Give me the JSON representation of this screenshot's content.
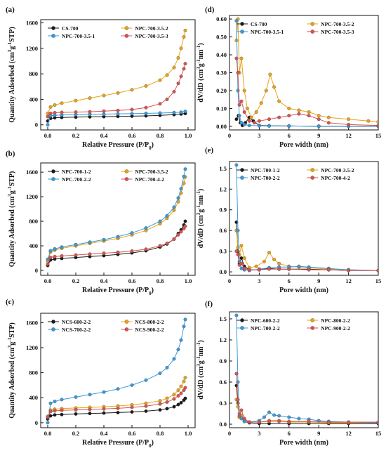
{
  "chart_data": [
    {
      "panel": "(a)",
      "type": "line",
      "xlabel": "Relative Pressure (P/P0)",
      "ylabel": "Quantity Adsorbed (cm3g-1STP)",
      "xlim": [
        -0.05,
        1.05
      ],
      "ylim": [
        -80,
        1650
      ],
      "xticks": [
        0.0,
        0.2,
        0.4,
        0.6,
        0.8,
        1.0
      ],
      "yticks": [
        0,
        400,
        800,
        1200,
        1600
      ],
      "legend": "top",
      "series": [
        {
          "name": "CS-700",
          "color": "#1a1a1a",
          "x": [
            0.0,
            0.02,
            0.05,
            0.1,
            0.2,
            0.3,
            0.4,
            0.5,
            0.6,
            0.7,
            0.8,
            0.9,
            0.95,
            0.98
          ],
          "y": [
            60,
            100,
            110,
            115,
            120,
            125,
            128,
            132,
            136,
            140,
            148,
            160,
            170,
            178
          ]
        },
        {
          "name": "NPC-700-3.5-2",
          "color": "#e8a317",
          "x": [
            0.0,
            0.02,
            0.05,
            0.1,
            0.2,
            0.3,
            0.4,
            0.5,
            0.6,
            0.7,
            0.8,
            0.85,
            0.9,
            0.93,
            0.95,
            0.97,
            0.98
          ],
          "y": [
            180,
            280,
            310,
            340,
            380,
            420,
            460,
            500,
            550,
            610,
            700,
            780,
            900,
            1050,
            1200,
            1380,
            1480
          ]
        },
        {
          "name": "NPC-700-3.5-1",
          "color": "#3a9ad9",
          "x": [
            0.0,
            0.02,
            0.05,
            0.1,
            0.2,
            0.3,
            0.4,
            0.5,
            0.6,
            0.7,
            0.8,
            0.9,
            0.95,
            0.98
          ],
          "y": [
            0,
            140,
            150,
            155,
            160,
            165,
            168,
            172,
            175,
            180,
            185,
            192,
            198,
            210
          ]
        },
        {
          "name": "NPC-700-3.5-3",
          "color": "#d9534f",
          "x": [
            0.0,
            0.02,
            0.05,
            0.1,
            0.2,
            0.3,
            0.4,
            0.5,
            0.6,
            0.7,
            0.8,
            0.85,
            0.9,
            0.93,
            0.95,
            0.97,
            0.98
          ],
          "y": [
            130,
            180,
            190,
            195,
            200,
            205,
            215,
            225,
            240,
            270,
            330,
            400,
            520,
            650,
            760,
            880,
            960
          ]
        }
      ]
    },
    {
      "panel": "(b)",
      "type": "line",
      "xlabel": "Relative Pressure (P/P0)",
      "ylabel": "Quantity Adsorbed (cm3g-1STP)",
      "xlim": [
        -0.05,
        1.05
      ],
      "ylim": [
        -80,
        1750
      ],
      "xticks": [
        0.0,
        0.2,
        0.4,
        0.6,
        0.8,
        1.0
      ],
      "yticks": [
        0,
        400,
        800,
        1200,
        1600
      ],
      "legend": "top",
      "series": [
        {
          "name": "NPC-700-1-2",
          "color": "#1a1a1a",
          "x": [
            0.0,
            0.02,
            0.05,
            0.1,
            0.2,
            0.3,
            0.4,
            0.5,
            0.6,
            0.7,
            0.8,
            0.85,
            0.9,
            0.93,
            0.95,
            0.97,
            0.98
          ],
          "y": [
            80,
            170,
            185,
            195,
            210,
            225,
            240,
            260,
            285,
            320,
            380,
            430,
            510,
            600,
            660,
            740,
            800
          ]
        },
        {
          "name": "NPC-700-3.5-2",
          "color": "#e8a317",
          "x": [
            0.0,
            0.02,
            0.05,
            0.1,
            0.2,
            0.3,
            0.4,
            0.5,
            0.6,
            0.7,
            0.8,
            0.85,
            0.9,
            0.93,
            0.95,
            0.97,
            0.98
          ],
          "y": [
            150,
            300,
            330,
            360,
            400,
            440,
            480,
            520,
            580,
            650,
            760,
            850,
            980,
            1120,
            1260,
            1420,
            1520
          ]
        },
        {
          "name": "NPC-700-2-2",
          "color": "#3a9ad9",
          "x": [
            0.0,
            0.02,
            0.05,
            0.1,
            0.2,
            0.3,
            0.4,
            0.5,
            0.6,
            0.7,
            0.8,
            0.85,
            0.9,
            0.93,
            0.95,
            0.97,
            0.98
          ],
          "y": [
            180,
            320,
            350,
            380,
            420,
            460,
            500,
            550,
            610,
            690,
            800,
            890,
            1030,
            1180,
            1330,
            1530,
            1650
          ]
        },
        {
          "name": "NPC-700-4-2",
          "color": "#d9534f",
          "x": [
            0.0,
            0.02,
            0.05,
            0.1,
            0.2,
            0.3,
            0.4,
            0.5,
            0.6,
            0.7,
            0.8,
            0.85,
            0.9,
            0.93,
            0.95,
            0.97,
            0.98
          ],
          "y": [
            100,
            210,
            225,
            235,
            250,
            265,
            280,
            295,
            315,
            345,
            400,
            440,
            510,
            580,
            630,
            680,
            720
          ]
        }
      ]
    },
    {
      "panel": "(c)",
      "type": "line",
      "xlabel": "Relative Pressure (P/P0)",
      "ylabel": "Quantity Adsorbed (cm3g-1STP)",
      "xlim": [
        -0.05,
        1.05
      ],
      "ylim": [
        -80,
        1750
      ],
      "xticks": [
        0.0,
        0.2,
        0.4,
        0.6,
        0.8,
        1.0
      ],
      "yticks": [
        0,
        400,
        800,
        1200,
        1600
      ],
      "legend": "top",
      "series": [
        {
          "name": "NCS-600-2-2",
          "color": "#1a1a1a",
          "x": [
            0.0,
            0.02,
            0.05,
            0.1,
            0.2,
            0.3,
            0.4,
            0.5,
            0.6,
            0.7,
            0.8,
            0.85,
            0.9,
            0.93,
            0.95,
            0.97,
            0.98
          ],
          "y": [
            60,
            110,
            125,
            130,
            140,
            148,
            155,
            162,
            172,
            185,
            205,
            225,
            255,
            290,
            320,
            360,
            390
          ]
        },
        {
          "name": "NCS-800-2-2",
          "color": "#e8a317",
          "x": [
            0.0,
            0.02,
            0.05,
            0.1,
            0.2,
            0.3,
            0.4,
            0.5,
            0.6,
            0.7,
            0.8,
            0.85,
            0.9,
            0.93,
            0.95,
            0.97,
            0.98
          ],
          "y": [
            100,
            200,
            215,
            225,
            235,
            245,
            255,
            268,
            285,
            310,
            350,
            390,
            450,
            520,
            580,
            660,
            720
          ]
        },
        {
          "name": "NCS-700-2-2",
          "color": "#3a9ad9",
          "x": [
            0.0,
            0.02,
            0.05,
            0.1,
            0.2,
            0.3,
            0.4,
            0.5,
            0.6,
            0.7,
            0.8,
            0.85,
            0.9,
            0.93,
            0.95,
            0.97,
            0.98
          ],
          "y": [
            0,
            310,
            340,
            370,
            410,
            450,
            490,
            540,
            600,
            680,
            790,
            880,
            1020,
            1170,
            1320,
            1540,
            1650
          ]
        },
        {
          "name": "NCS-900-2-2",
          "color": "#d9534f",
          "x": [
            0.0,
            0.02,
            0.05,
            0.1,
            0.2,
            0.3,
            0.4,
            0.5,
            0.6,
            0.7,
            0.8,
            0.85,
            0.9,
            0.93,
            0.95,
            0.97,
            0.98
          ],
          "y": [
            90,
            180,
            190,
            198,
            205,
            212,
            220,
            230,
            245,
            265,
            300,
            330,
            380,
            430,
            470,
            520,
            560
          ]
        }
      ]
    },
    {
      "panel": "(d)",
      "type": "line",
      "xlabel": "Pore width (nm)",
      "ylabel": "dV/dD (cm3g-1nm-1)",
      "xlim": [
        0,
        15
      ],
      "ylim": [
        -0.02,
        0.62
      ],
      "xticks": [
        0,
        3,
        6,
        9,
        12,
        15
      ],
      "yticks": [
        0.0,
        0.1,
        0.2,
        0.3,
        0.4,
        0.5,
        0.6
      ],
      "ytick_labels": [
        "0.00",
        "0.10",
        "0.20",
        "0.30",
        "0.40",
        "0.50",
        "0.60"
      ],
      "legend": "top",
      "series": [
        {
          "name": "CS-700",
          "color": "#1a1a1a",
          "x": [
            0.7,
            0.9,
            1.1,
            1.3,
            1.6,
            2.0,
            2.4,
            3.0,
            4.0,
            6.0,
            9.0,
            12.0,
            15.0
          ],
          "y": [
            0.04,
            0.06,
            0.02,
            0.005,
            0.02,
            0.05,
            0.03,
            0.005,
            0.003,
            0.002,
            0.001,
            0.001,
            0.001
          ]
        },
        {
          "name": "NPC-700-3.5-2",
          "color": "#e8a317",
          "x": [
            0.7,
            0.85,
            1.0,
            1.2,
            1.5,
            1.8,
            2.2,
            2.7,
            3.2,
            3.7,
            4.1,
            4.5,
            5.0,
            6.0,
            7.0,
            8.0,
            9.0,
            10.0,
            12.0,
            14.0,
            15.0
          ],
          "y": [
            0.48,
            0.6,
            0.3,
            0.38,
            0.2,
            0.1,
            0.05,
            0.08,
            0.13,
            0.2,
            0.29,
            0.22,
            0.14,
            0.1,
            0.09,
            0.08,
            0.06,
            0.05,
            0.04,
            0.03,
            0.025
          ]
        },
        {
          "name": "NPC-700-3.5-1",
          "color": "#3a9ad9",
          "x": [
            0.7,
            0.85,
            1.0,
            1.2,
            1.5,
            2.0,
            3.0,
            4.0,
            6.0,
            9.0,
            12.0,
            15.0
          ],
          "y": [
            0.59,
            0.2,
            0.06,
            0.02,
            0.01,
            0.005,
            0.003,
            0.002,
            0.002,
            0.001,
            0.001,
            0.001
          ]
        },
        {
          "name": "NPC-700-3.5-3",
          "color": "#d9534f",
          "x": [
            0.7,
            0.85,
            1.0,
            1.2,
            1.5,
            2.0,
            2.5,
            3.0,
            4.0,
            5.0,
            6.0,
            7.0,
            8.0,
            9.0,
            10.0,
            12.0,
            15.0
          ],
          "y": [
            0.38,
            0.3,
            0.12,
            0.14,
            0.08,
            0.03,
            0.02,
            0.03,
            0.04,
            0.05,
            0.06,
            0.07,
            0.06,
            0.04,
            0.02,
            0.01,
            0.005
          ]
        }
      ]
    },
    {
      "panel": "(e)",
      "type": "line",
      "xlabel": "Pore width (nm)",
      "ylabel": "dV/dD (cm3g-1nm-1)",
      "xlim": [
        0,
        15
      ],
      "ylim": [
        -0.05,
        1.6
      ],
      "xticks": [
        0,
        3,
        6,
        9,
        12,
        15
      ],
      "yticks": [
        0.0,
        0.3,
        0.6,
        0.9,
        1.2,
        1.5
      ],
      "ytick_labels": [
        "0.0",
        "0.3",
        "0.6",
        "0.9",
        "1.2",
        "1.5"
      ],
      "legend": "top",
      "series": [
        {
          "name": "NPC-700-1-2",
          "color": "#1a1a1a",
          "x": [
            0.7,
            0.85,
            1.0,
            1.2,
            1.5,
            2.0,
            3.0,
            4.0,
            5.0,
            6.0,
            8.0,
            10.0,
            12.0,
            15.0
          ],
          "y": [
            0.72,
            0.3,
            0.12,
            0.2,
            0.08,
            0.03,
            0.03,
            0.05,
            0.04,
            0.04,
            0.04,
            0.03,
            0.02,
            0.02
          ]
        },
        {
          "name": "NPC-700-3.5-2",
          "color": "#e8a317",
          "x": [
            0.7,
            0.85,
            1.0,
            1.2,
            1.5,
            2.0,
            2.7,
            3.5,
            4.0,
            4.5,
            5.0,
            6.0,
            7.0,
            8.0,
            10.0,
            12.0,
            15.0
          ],
          "y": [
            0.6,
            0.35,
            0.25,
            0.38,
            0.2,
            0.06,
            0.08,
            0.15,
            0.28,
            0.18,
            0.12,
            0.08,
            0.07,
            0.06,
            0.04,
            0.03,
            0.02
          ]
        },
        {
          "name": "NPC-700-2-2",
          "color": "#3a9ad9",
          "x": [
            0.7,
            0.85,
            1.0,
            1.2,
            1.5,
            2.0,
            3.0,
            4.0,
            5.0,
            6.0,
            7.0,
            8.0,
            10.0,
            12.0,
            15.0
          ],
          "y": [
            1.55,
            0.6,
            0.15,
            0.05,
            0.03,
            0.02,
            0.04,
            0.06,
            0.07,
            0.07,
            0.08,
            0.07,
            0.05,
            0.03,
            0.02
          ]
        },
        {
          "name": "NPC-700-4-2",
          "color": "#d9534f",
          "x": [
            0.7,
            0.85,
            1.0,
            1.2,
            1.5,
            2.0,
            3.0,
            4.0,
            5.0,
            6.0,
            8.0,
            10.0,
            12.0,
            15.0
          ],
          "y": [
            0.3,
            0.25,
            0.1,
            0.12,
            0.05,
            0.03,
            0.03,
            0.04,
            0.04,
            0.04,
            0.03,
            0.03,
            0.02,
            0.02
          ]
        }
      ]
    },
    {
      "panel": "(f)",
      "type": "line",
      "xlabel": "Pore width (nm)",
      "ylabel": "dV/dD (cm3g-1nm-1)",
      "xlim": [
        0,
        15
      ],
      "ylim": [
        -0.05,
        1.6
      ],
      "xticks": [
        0,
        3,
        6,
        9,
        12,
        15
      ],
      "yticks": [
        0.0,
        0.3,
        0.6,
        0.9,
        1.2,
        1.5
      ],
      "ytick_labels": [
        "0.0",
        "0.3",
        "0.6",
        "0.9",
        "1.2",
        "1.5"
      ],
      "legend": "top",
      "series": [
        {
          "name": "NPC-600-2-2",
          "color": "#1a1a1a",
          "x": [
            0.7,
            0.85,
            1.0,
            1.2,
            1.5,
            2.0,
            3.0,
            4.0,
            6.0,
            8.0,
            10.0,
            12.0,
            15.0
          ],
          "y": [
            0.55,
            0.3,
            0.1,
            0.12,
            0.04,
            0.02,
            0.01,
            0.01,
            0.01,
            0.01,
            0.01,
            0.01,
            0.01
          ]
        },
        {
          "name": "NPC-800-2-2",
          "color": "#e8a317",
          "x": [
            0.7,
            0.85,
            1.0,
            1.2,
            1.5,
            2.0,
            3.0,
            4.0,
            5.0,
            6.0,
            8.0,
            10.0,
            12.0,
            15.0
          ],
          "y": [
            0.35,
            0.25,
            0.1,
            0.12,
            0.06,
            0.03,
            0.03,
            0.04,
            0.04,
            0.03,
            0.03,
            0.02,
            0.02,
            0.02
          ]
        },
        {
          "name": "NPC-700-2-2",
          "color": "#3a9ad9",
          "x": [
            0.7,
            0.85,
            1.0,
            1.2,
            1.5,
            2.0,
            3.0,
            3.5,
            4.0,
            4.5,
            5.0,
            6.0,
            7.0,
            8.0,
            9.0,
            10.0,
            12.0,
            15.0
          ],
          "y": [
            1.55,
            0.6,
            0.15,
            0.08,
            0.04,
            0.03,
            0.05,
            0.1,
            0.17,
            0.13,
            0.12,
            0.1,
            0.08,
            0.07,
            0.05,
            0.04,
            0.03,
            0.02
          ]
        },
        {
          "name": "NPC-900-2-2",
          "color": "#d9534f",
          "x": [
            0.7,
            0.85,
            1.0,
            1.2,
            1.5,
            2.0,
            3.0,
            4.0,
            5.0,
            6.0,
            8.0,
            10.0,
            12.0,
            15.0
          ],
          "y": [
            0.72,
            0.35,
            0.12,
            0.2,
            0.08,
            0.03,
            0.03,
            0.05,
            0.05,
            0.04,
            0.04,
            0.03,
            0.03,
            0.03
          ]
        }
      ]
    }
  ]
}
